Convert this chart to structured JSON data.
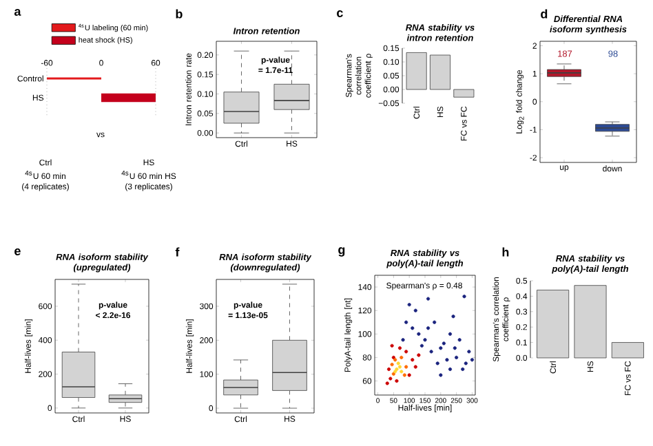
{
  "chart_data": [
    {
      "type": "bar",
      "orientation": "horizontal",
      "categories": [
        "Control",
        "HS"
      ],
      "series": [
        {
          "name": "$^{4s}$U labeling (60 min)",
          "color": "#e31a1c",
          "values": [
            60,
            null
          ],
          "base": [
            -60,
            null
          ]
        },
        {
          "name": "heat shock (HS)",
          "color": "#c4001c",
          "values": [
            null,
            60
          ],
          "base": [
            null,
            0
          ]
        }
      ],
      "xlim": [
        -60,
        60
      ],
      "xticks": [
        -60,
        0,
        60
      ],
      "legend": "top",
      "ref_lines": [
        {
          "axis": "x",
          "value": -60,
          "line_style": "dotted"
        },
        {
          "axis": "x",
          "value": 60,
          "line_style": "dotted"
        }
      ],
      "annotations": [
        "a",
        "Ctrl",
        "$^{4s}$U 60 min",
        "(4 replicates)",
        "vs",
        "HS",
        "$^{4s}$U 60 min HS",
        "(3 replicates)"
      ]
    },
    {
      "type": "box",
      "title": "Intron retention",
      "ylabel": "Intron retention rate",
      "categories": [
        "Ctrl",
        "HS"
      ],
      "color": "#d3d3d3",
      "boxes": [
        {
          "low": 0.0,
          "q1": 0.025,
          "median": 0.055,
          "q3": 0.105,
          "high": 0.21
        },
        {
          "low": 0.0,
          "q1": 0.06,
          "median": 0.083,
          "q3": 0.125,
          "high": 0.21
        }
      ],
      "ylim": [
        -0.012,
        0.235
      ],
      "yticks": [
        {
          "value": 0,
          "label": "0.00"
        },
        {
          "value": 0.05,
          "label": "0.05"
        },
        {
          "value": 0.1,
          "label": "0.10"
        },
        {
          "value": 0.15,
          "label": "0.15"
        },
        {
          "value": 0.2,
          "label": "0.20"
        }
      ],
      "annotations": [
        "b",
        "p-value",
        "= 1.7e-11"
      ]
    },
    {
      "type": "bar",
      "title": "RNA stability  vs intron retention",
      "ylabel": "Spearman's correlation coefficient ρ",
      "categories": [
        "Ctrl",
        "HS",
        "FC vs FC"
      ],
      "color": "#d3d3d3",
      "values": [
        0.134,
        0.125,
        -0.028
      ],
      "ylim": [
        -0.05,
        0.15
      ],
      "yticks": [
        {
          "value": -0.05,
          "label": "−0.05"
        },
        {
          "value": 0,
          "label": "0.00"
        },
        {
          "value": 0.05,
          "label": "0.05"
        },
        {
          "value": 0.1,
          "label": "0.10"
        },
        {
          "value": 0.15,
          "label": "0.15"
        }
      ],
      "annotations": [
        "c"
      ]
    },
    {
      "type": "box",
      "title": "Differential RNA isoform synthesis",
      "ylabel": "Log$_{2}$ fold change",
      "categories": [
        "up",
        "down"
      ],
      "colors": [
        "#b2182b",
        "#2c4a94"
      ],
      "boxes": [
        {
          "low": 0.64,
          "q1": 0.9,
          "median": 1.03,
          "q3": 1.15,
          "high": 1.35
        },
        {
          "low": -1.23,
          "q1": -1.06,
          "median": -0.94,
          "q3": -0.81,
          "high": -0.72
        }
      ],
      "ylim": [
        -2.17,
        2.16
      ],
      "yticks": [
        -2,
        -1,
        0,
        1,
        2
      ],
      "annotations": [
        "d",
        "187",
        "98"
      ]
    },
    {
      "type": "box",
      "title": "RNA isoform stability (upregulated)",
      "ylabel": "Half-lives [min]",
      "categories": [
        "Ctrl",
        "HS"
      ],
      "color": "#d3d3d3",
      "boxes": [
        {
          "low": 0,
          "q1": 62,
          "median": 125,
          "q3": 330,
          "high": 730
        },
        {
          "low": 0,
          "q1": 33,
          "median": 55,
          "q3": 77,
          "high": 143
        }
      ],
      "ylim": [
        -29,
        758
      ],
      "yticks": [
        0,
        200,
        400,
        600
      ],
      "annotations": [
        "e",
        "p-value",
        "< 2.2e-16"
      ]
    },
    {
      "type": "box",
      "title": "RNA isoform stability (downregulated)",
      "ylabel": "Half-lives [min]",
      "categories": [
        "Ctrl",
        "HS"
      ],
      "color": "#d3d3d3",
      "boxes": [
        {
          "low": 0,
          "q1": 39,
          "median": 61,
          "q3": 83,
          "high": 142
        },
        {
          "low": 0,
          "q1": 52,
          "median": 105,
          "q3": 200,
          "high": 365
        }
      ],
      "ylim": [
        -14,
        379
      ],
      "yticks": [
        0,
        100,
        200,
        300
      ],
      "annotations": [
        "f",
        "p-value",
        "= 1.13e-05"
      ]
    },
    {
      "type": "scatter",
      "title": "RNA stability  vs poly(A)-tail length",
      "xlabel": "Half-lives [min]",
      "ylabel": "PolyA-tail length [nt]",
      "x": [
        150,
        200,
        250,
        280,
        230,
        180,
        120,
        100,
        210,
        260,
        290,
        170,
        140,
        220,
        270,
        190,
        130,
        240,
        160,
        110,
        275,
        200,
        90,
        245,
        160,
        300,
        80,
        230,
        40,
        30,
        50,
        90,
        110,
        120,
        70,
        35,
        100,
        60,
        130,
        45,
        55,
        75,
        90,
        50,
        45,
        85,
        60,
        70,
        55,
        65,
        75
      ],
      "values": [
        95,
        88,
        80,
        75,
        100,
        110,
        120,
        125,
        92,
        95,
        85,
        85,
        90,
        78,
        70,
        75,
        100,
        115,
        130,
        105,
        132,
        65,
        110,
        88,
        105,
        78,
        95,
        70,
        62,
        58,
        80,
        85,
        78,
        72,
        88,
        70,
        65,
        60,
        82,
        90,
        78,
        80,
        72,
        66,
        74,
        65,
        70,
        72,
        68,
        75,
        68
      ],
      "colors": [
        "#1a237e",
        "#1a237e",
        "#1a237e",
        "#1a237e",
        "#1a237e",
        "#1a237e",
        "#1a237e",
        "#1a237e",
        "#1a237e",
        "#1a237e",
        "#1a237e",
        "#1a237e",
        "#1a237e",
        "#1a237e",
        "#1a237e",
        "#1a237e",
        "#1a237e",
        "#1a237e",
        "#1a237e",
        "#1a237e",
        "#1a237e",
        "#1a237e",
        "#1a237e",
        "#1a237e",
        "#1a237e",
        "#1a237e",
        "#1a237e",
        "#1a237e",
        "#cc0000",
        "#cc0000",
        "#cc0000",
        "#cc0000",
        "#cc0000",
        "#cc0000",
        "#cc0000",
        "#cc0000",
        "#cc0000",
        "#cc0000",
        "#cc0000",
        "#cc0000",
        "#ff6a00",
        "#ff6a00",
        "#ff6a00",
        "#ff6a00",
        "#ff6a00",
        "#ff6a00",
        "#ffd733",
        "#ffd733",
        "#ffd733",
        "#ffd733",
        "#ffd733"
      ],
      "xlim": [
        -10,
        310
      ],
      "xticks": [
        0,
        50,
        100,
        150,
        200,
        250,
        300
      ],
      "ylim": [
        48,
        150
      ],
      "yticks": [
        60,
        80,
        100,
        120,
        140
      ],
      "annotations": [
        "g",
        "Spearman's ρ = 0.48"
      ]
    },
    {
      "type": "bar",
      "title": "RNA stability  vs poly(A)-tail length",
      "ylabel": "Spearman's correlation coefficient ρ",
      "categories": [
        "Ctrl",
        "HS",
        "FC vs FC"
      ],
      "color": "#d3d3d3",
      "values": [
        0.44,
        0.47,
        0.1
      ],
      "ylim": [
        0,
        0.5
      ],
      "yticks": [
        {
          "value": 0,
          "label": "0.0"
        },
        {
          "value": 0.1,
          "label": "0.1"
        },
        {
          "value": 0.2,
          "label": "0.2"
        },
        {
          "value": 0.3,
          "label": "0.3"
        },
        {
          "value": 0.4,
          "label": "0.4"
        },
        {
          "value": 0.5,
          "label": "0.5"
        }
      ],
      "annotations": [
        "h"
      ]
    }
  ]
}
